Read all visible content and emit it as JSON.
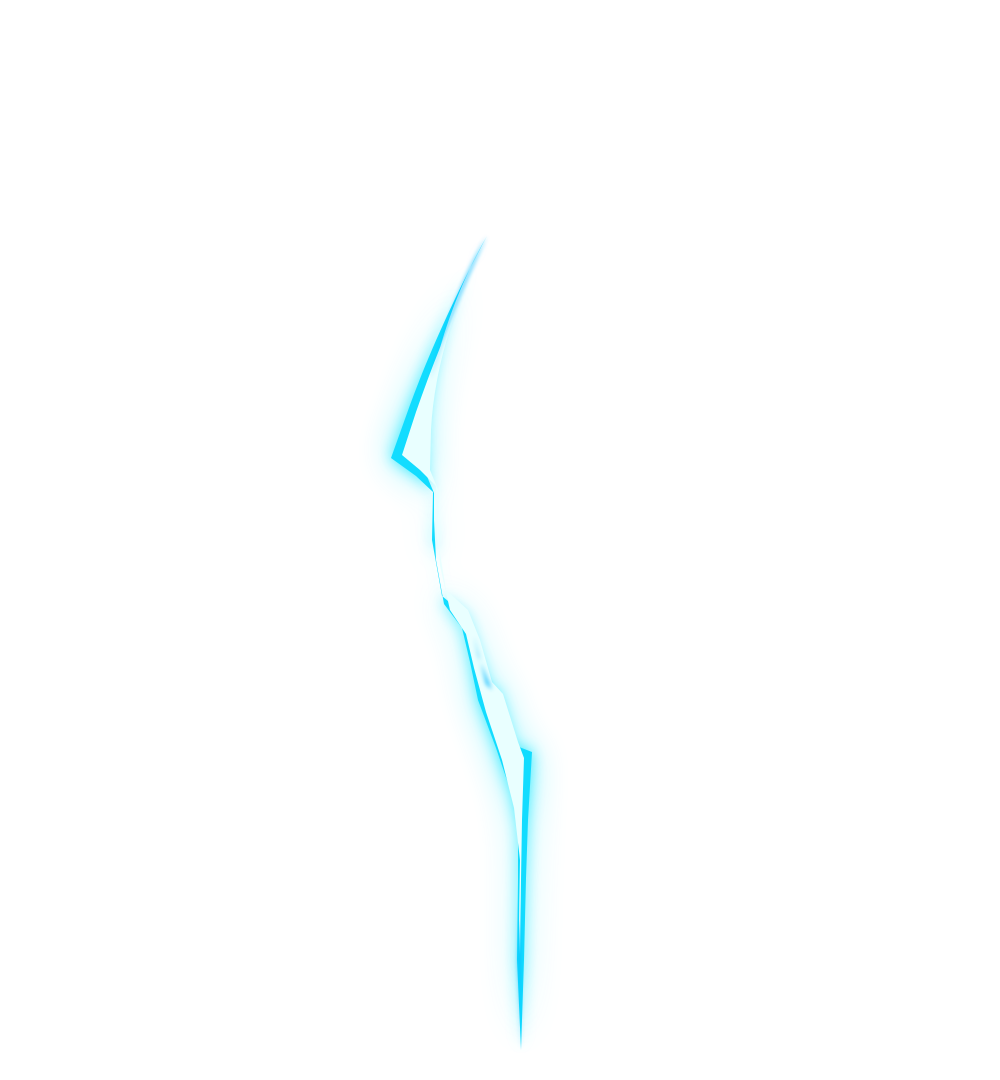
{
  "scene": {
    "background_color": "#ffffff",
    "subject": "energy-streak",
    "colors": {
      "glow": "#00e5ff",
      "outline": "#12dcff",
      "edge_dark": "#00b7ff",
      "core": "#e9ffff"
    }
  }
}
